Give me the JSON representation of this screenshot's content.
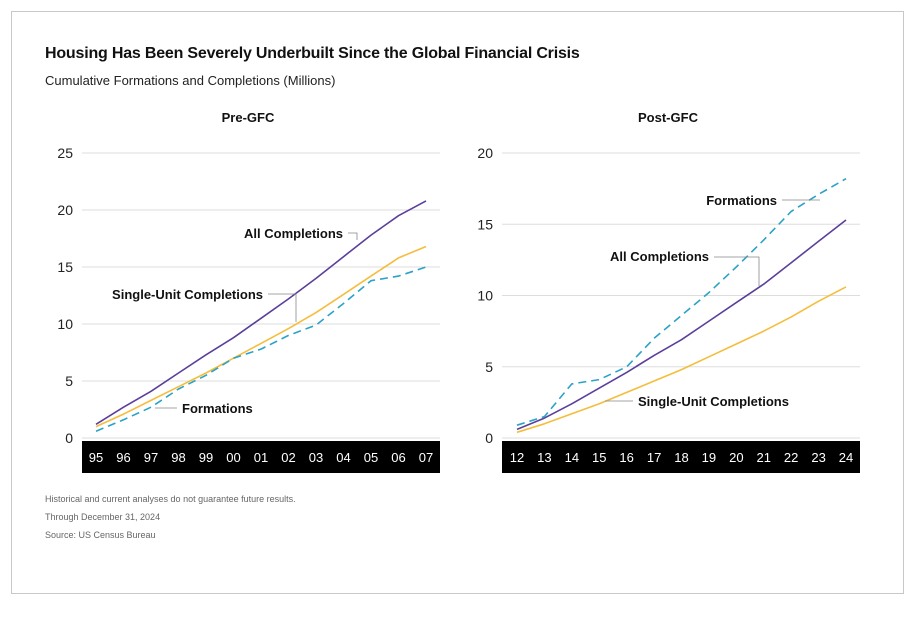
{
  "header": {
    "title": "Housing Has Been Severely Underbuilt Since the Global Financial Crisis",
    "subtitle": "Cumulative Formations and Completions (Millions)"
  },
  "footnotes": [
    "Historical and current analyses do not guarantee future results.",
    "Through December 31, 2024",
    "Source: US Census Bureau"
  ],
  "colors": {
    "all_completions": "#5b3f9a",
    "single_unit": "#f5bd3c",
    "formations": "#2ba2c8",
    "axis_band": "#000000",
    "grid": "#dddddd"
  },
  "chart_data": [
    {
      "type": "line",
      "title": "Pre-GFC",
      "categories": [
        "95",
        "96",
        "97",
        "98",
        "99",
        "00",
        "01",
        "02",
        "03",
        "04",
        "05",
        "06",
        "07"
      ],
      "ylim": [
        0,
        25
      ],
      "yticks": [
        0,
        5,
        10,
        15,
        20,
        25
      ],
      "grid": true,
      "series": [
        {
          "name": "All Completions",
          "style": "solid",
          "color": "#5b3f9a",
          "values": [
            1.2,
            2.7,
            4.1,
            5.7,
            7.3,
            8.8,
            10.5,
            12.2,
            14.0,
            15.9,
            17.8,
            19.5,
            20.8
          ]
        },
        {
          "name": "Single-Unit Completions",
          "style": "solid",
          "color": "#f5bd3c",
          "values": [
            1.0,
            2.1,
            3.3,
            4.5,
            5.7,
            7.0,
            8.3,
            9.6,
            11.0,
            12.6,
            14.2,
            15.8,
            16.8
          ]
        },
        {
          "name": "Formations",
          "style": "dashed",
          "color": "#2ba2c8",
          "values": [
            0.6,
            1.6,
            2.7,
            4.3,
            5.5,
            7.0,
            7.8,
            9.0,
            9.9,
            11.8,
            13.8,
            14.2,
            15.0
          ]
        }
      ],
      "annotations": [
        "All Completions",
        "Single-Unit Completions",
        "Formations"
      ]
    },
    {
      "type": "line",
      "title": "Post-GFC",
      "categories": [
        "12",
        "13",
        "14",
        "15",
        "16",
        "17",
        "18",
        "19",
        "20",
        "21",
        "22",
        "23",
        "24"
      ],
      "ylim": [
        0,
        20
      ],
      "yticks": [
        0,
        5,
        10,
        15,
        20
      ],
      "grid": true,
      "series": [
        {
          "name": "All Completions",
          "style": "solid",
          "color": "#5b3f9a",
          "values": [
            0.6,
            1.4,
            2.4,
            3.5,
            4.6,
            5.8,
            6.9,
            8.2,
            9.5,
            10.8,
            12.3,
            13.8,
            15.3
          ]
        },
        {
          "name": "Single-Unit Completions",
          "style": "solid",
          "color": "#f5bd3c",
          "values": [
            0.4,
            1.0,
            1.7,
            2.4,
            3.2,
            4.0,
            4.8,
            5.7,
            6.6,
            7.5,
            8.5,
            9.6,
            10.6
          ]
        },
        {
          "name": "Formations",
          "style": "dashed",
          "color": "#2ba2c8",
          "values": [
            0.9,
            1.5,
            3.8,
            4.1,
            5.0,
            7.0,
            8.6,
            10.2,
            12.0,
            13.9,
            15.9,
            17.1,
            18.2
          ]
        }
      ],
      "annotations": [
        "Formations",
        "All Completions",
        "Single-Unit Completions"
      ]
    }
  ]
}
